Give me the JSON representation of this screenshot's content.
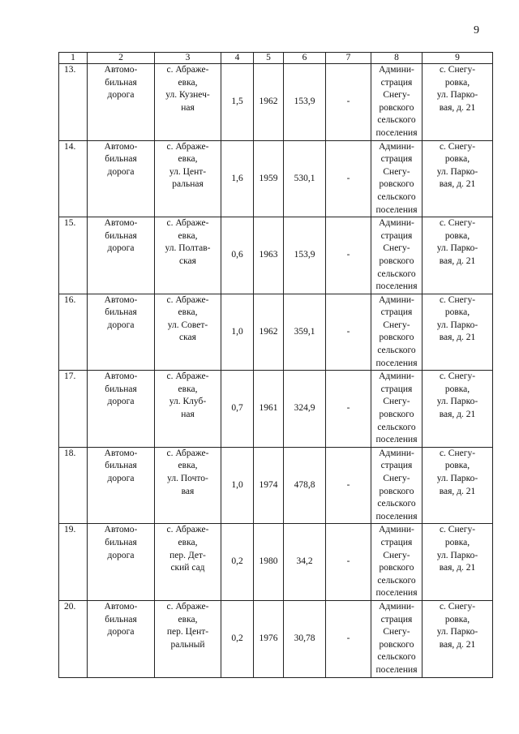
{
  "page_number": "9",
  "table": {
    "headers": [
      "1",
      "2",
      "3",
      "4",
      "5",
      "6",
      "7",
      "8",
      "9"
    ],
    "rows": [
      {
        "num": "13.",
        "type": "Автомо-\nбильная\nдорога",
        "location": "с. Абраже-\nевка,\nул. Кузнеч-\nная",
        "length": "1,5",
        "year": "1962",
        "value": "153,9",
        "col7": "-",
        "owner": "Админи-\nстрация\nСнегу-\nровского\nсельского\nпоселения",
        "address": "с. Снегу-\nровка,\nул. Парко-\nвая, д. 21"
      },
      {
        "num": "14.",
        "type": "Автомо-\nбильная\nдорога",
        "location": "с. Абраже-\nевка,\nул. Цент-\nральная",
        "length": "1,6",
        "year": "1959",
        "value": "530,1",
        "col7": "-",
        "owner": "Админи-\nстрация\nСнегу-\nровского\nсельского\nпоселения",
        "address": "с. Снегу-\nровка,\nул. Парко-\nвая, д. 21"
      },
      {
        "num": "15.",
        "type": "Автомо-\nбильная\nдорога",
        "location": "с. Абраже-\nевка,\nул. Полтав-\nская",
        "length": "0,6",
        "year": "1963",
        "value": "153,9",
        "col7": "-",
        "owner": "Админи-\nстрация\nСнегу-\nровского\nсельского\nпоселения",
        "address": "с. Снегу-\nровка,\nул. Парко-\nвая, д. 21"
      },
      {
        "num": "16.",
        "type": "Автомо-\nбильная\nдорога",
        "location": "с. Абраже-\nевка,\nул. Совет-\nская",
        "length": "1,0",
        "year": "1962",
        "value": "359,1",
        "col7": "-",
        "owner": "Админи-\nстрация\nСнегу-\nровского\nсельского\nпоселения",
        "address": "с. Снегу-\nровка,\nул. Парко-\nвая, д. 21"
      },
      {
        "num": "17.",
        "type": "Автомо-\nбильная\nдорога",
        "location": "с. Абраже-\nевка,\nул. Клуб-\nная",
        "length": "0,7",
        "year": "1961",
        "value": "324,9",
        "col7": "-",
        "owner": "Админи-\nстрация\nСнегу-\nровского\nсельского\nпоселения",
        "address": "с. Снегу-\nровка,\nул. Парко-\nвая, д. 21"
      },
      {
        "num": "18.",
        "type": "Автомо-\nбильная\nдорога",
        "location": "с. Абраже-\nевка,\nул. Почто-\nвая",
        "length": "1,0",
        "year": "1974",
        "value": "478,8",
        "col7": "-",
        "owner": "Админи-\nстрация\nСнегу-\nровского\nсельского\nпоселения",
        "address": "с. Снегу-\nровка,\nул. Парко-\nвая, д. 21"
      },
      {
        "num": "19.",
        "type": "Автомо-\nбильная\nдорога",
        "location": "с. Абраже-\nевка,\nпер. Дет-\nский сад",
        "length": "0,2",
        "year": "1980",
        "value": "34,2",
        "col7": "-",
        "owner": "Админи-\nстрация\nСнегу-\nровского\nсельского\nпоселения",
        "address": "с. Снегу-\nровка,\nул. Парко-\nвая, д. 21"
      },
      {
        "num": "20.",
        "type": "Автомо-\nбильная\nдорога",
        "location": "с. Абраже-\nевка,\nпер. Цент-\nральный",
        "length": "0,2",
        "year": "1976",
        "value": "30,78",
        "col7": "-",
        "owner": "Админи-\nстрация\nСнегу-\nровского\nсельского\nпоселения",
        "address": "с. Снегу-\nровка,\nул. Парко-\nвая, д. 21"
      }
    ]
  }
}
